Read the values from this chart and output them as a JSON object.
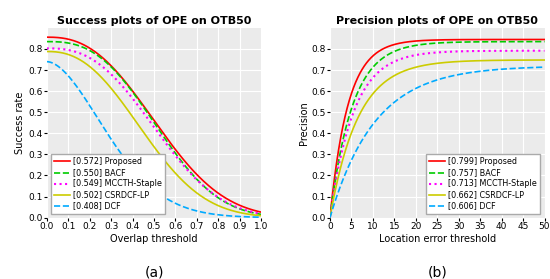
{
  "title_a": "Success plots of OPE on OTB50",
  "title_b": "Precision plots of OPE on OTB50",
  "xlabel_a": "Overlap threshold",
  "ylabel_a": "Success rate",
  "xlabel_b": "Location error threshold",
  "ylabel_b": "Precision",
  "caption_a": "(a)",
  "caption_b": "(b)",
  "success_legend": [
    {
      "label": "[0.572] Proposed",
      "color": "#ff0000",
      "ls": "-",
      "lw": 1.2
    },
    {
      "label": "[0.550] BACF",
      "color": "#00cc00",
      "ls": "--",
      "lw": 1.2
    },
    {
      "label": "[0.549] MCCTH-Staple",
      "color": "#ff00ff",
      "ls": ":",
      "lw": 1.5
    },
    {
      "label": "[0.502] CSRDCF-LP",
      "color": "#cccc00",
      "ls": "-",
      "lw": 1.2
    },
    {
      "label": "[0.408] DCF",
      "color": "#00aaff",
      "ls": "--",
      "lw": 1.2
    }
  ],
  "precision_legend": [
    {
      "label": "[0.799] Proposed",
      "color": "#ff0000",
      "ls": "-",
      "lw": 1.2
    },
    {
      "label": "[0.757] BACF",
      "color": "#00cc00",
      "ls": "--",
      "lw": 1.2
    },
    {
      "label": "[0.713] MCCTH-Staple",
      "color": "#ff00ff",
      "ls": ":",
      "lw": 1.5
    },
    {
      "label": "[0.662] CSRDCF-LP",
      "color": "#cccc00",
      "ls": "-",
      "lw": 1.2
    },
    {
      "label": "[0.606] DCF",
      "color": "#00aaff",
      "ls": "--",
      "lw": 1.2
    }
  ],
  "background": "#ebebeb",
  "grid_color": "#ffffff",
  "title_fontsize": 8,
  "label_fontsize": 7,
  "legend_fontsize": 5.8,
  "tick_fontsize": 6.5,
  "caption_fontsize": 10
}
